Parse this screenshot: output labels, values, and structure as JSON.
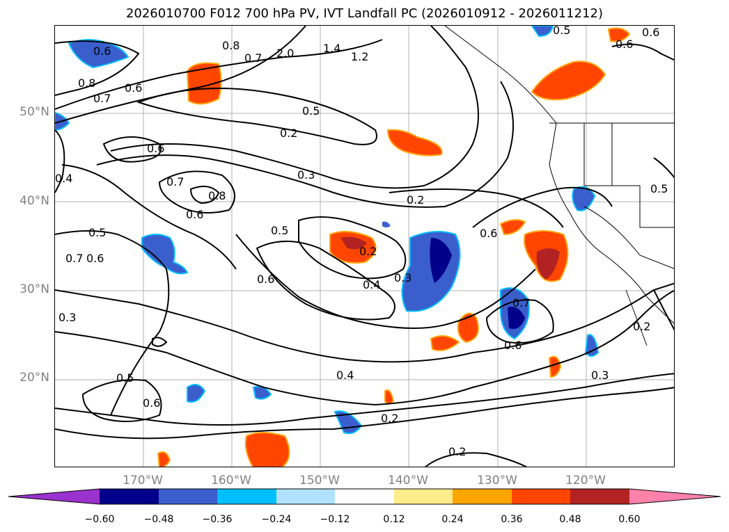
{
  "title": "2026010700 F012 700 hPa PV, IVT Landfall PC (2026010912 - 2026011212)",
  "lat_labels": [
    "50°N",
    "40°N",
    "30°N",
    "20°N"
  ],
  "lon_labels": [
    "170°W",
    "160°W",
    "150°W",
    "140°W",
    "130°W",
    "120°W"
  ],
  "contour_labels": [
    "0.6",
    "0.8",
    "0.7",
    "0.6",
    "2.0",
    "1.4",
    "1.2",
    "0.8",
    "0.7",
    "0.5",
    "0.2",
    "0.6",
    "0.3",
    "0.7",
    "0.8",
    "0.6",
    "0.2",
    "0.4",
    "0.5",
    "0.7",
    "0.6",
    "0.3",
    "0.5",
    "0.6",
    "0.2",
    "0.4",
    "0.3",
    "0.6",
    "0.7",
    "0.6",
    "0.5",
    "0.6",
    "0.4",
    "0.2",
    "0.2",
    "0.3",
    "0.2",
    "0.6",
    "0.5",
    "0.6",
    "0.5"
  ],
  "colorbar": {
    "tick_labels": [
      "−0.60",
      "−0.48",
      "−0.36",
      "−0.24",
      "−0.12",
      "0.12",
      "0.24",
      "0.36",
      "0.48",
      "0.60"
    ],
    "colors": [
      "#9a32cd",
      "#00008b",
      "#3a5fcd",
      "#00bfff",
      "#b0e2ff",
      "#ffffff",
      "#ffec8b",
      "#ffa500",
      "#ff4500",
      "#b22222",
      "#ff82ab"
    ]
  }
}
